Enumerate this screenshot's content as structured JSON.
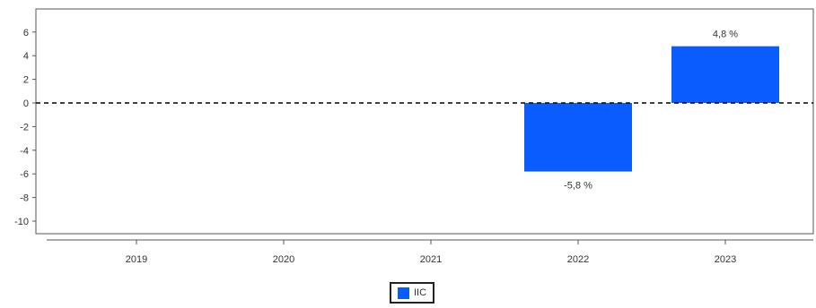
{
  "chart_data": {
    "type": "bar",
    "categories": [
      "2019",
      "2020",
      "2021",
      "2022",
      "2023"
    ],
    "series": [
      {
        "name": "IIC",
        "values": [
          null,
          null,
          null,
          -5.8,
          4.8
        ],
        "color": "#0a5cff"
      }
    ],
    "data_labels": [
      "",
      "",
      "",
      "-5,8 %",
      "4,8 %"
    ],
    "y_ticks": [
      "6",
      "4",
      "2",
      "0",
      "-2",
      "-4",
      "-6",
      "-8",
      "-10"
    ],
    "ylim": [
      -11,
      7.5
    ],
    "zero_line": "dashed",
    "grid": false,
    "legend_position": "bottom-center"
  }
}
